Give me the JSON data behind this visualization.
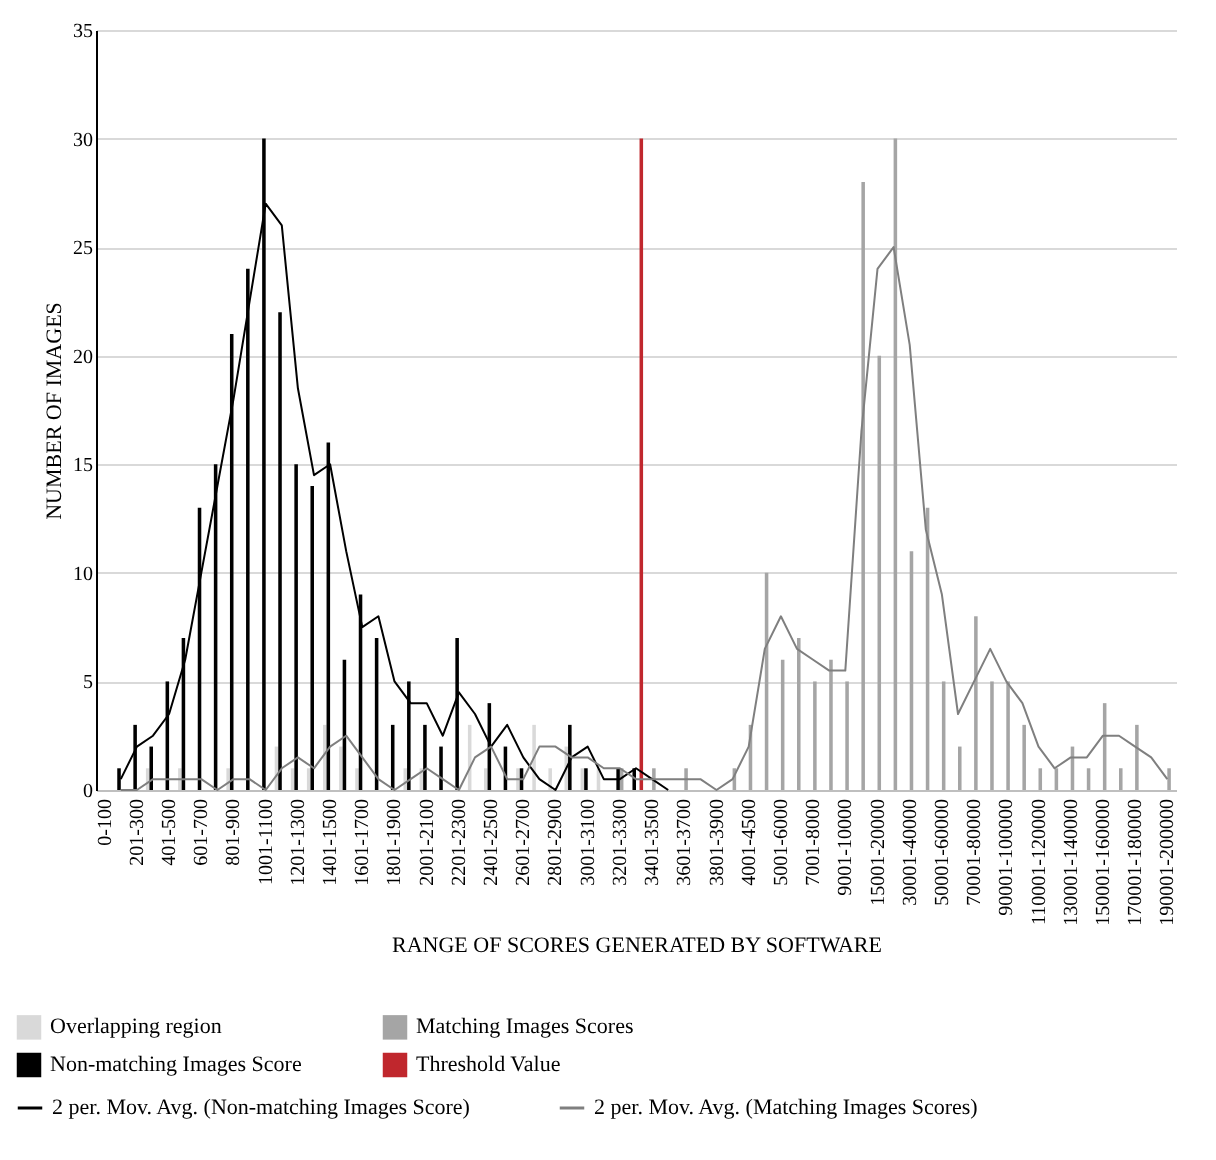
{
  "chart_data": {
    "type": "bar",
    "xlabel": "RANGE OF SCORES GENERATED BY SOFTWARE",
    "ylabel": "NUMBER OF IMAGES",
    "categories": [
      "0-100",
      null,
      "201-300",
      null,
      "401-500",
      null,
      "601-700",
      null,
      "801-900",
      null,
      "1001-1100",
      null,
      "1201-1300",
      null,
      "1401-1500",
      null,
      "1601-1700",
      null,
      "1801-1900",
      null,
      "2001-2100",
      null,
      "2201-2300",
      null,
      "2401-2500",
      null,
      "2601-2700",
      null,
      "2801-2900",
      null,
      "3001-3100",
      null,
      "3201-3300",
      null,
      "3401-3500",
      null,
      "3601-3700",
      null,
      "3801-3900",
      null,
      "4001-4500",
      null,
      "5001-6000",
      null,
      "7001-8000",
      null,
      "9001-10000",
      null,
      "15001-20000",
      null,
      "30001-40000",
      null,
      "50001-60000",
      null,
      "70001-80000",
      null,
      "90001-100000",
      null,
      "110001-120000",
      null,
      "130001-140000",
      null,
      "150001-160000",
      null,
      "170001-180000",
      null,
      "190001-200000"
    ],
    "ylim": [
      0,
      35
    ],
    "yticks": [
      0,
      5,
      10,
      15,
      20,
      25,
      30,
      35
    ],
    "grid": "y",
    "legend": "bottom",
    "series": [
      {
        "name": "Overlapping region",
        "color": "#d9d9d9",
        "values": [
          null,
          null,
          null,
          1,
          null,
          1,
          null,
          null,
          1,
          null,
          null,
          2,
          1,
          1,
          3,
          2,
          1,
          null,
          null,
          1,
          1,
          null,
          null,
          3,
          1,
          null,
          1,
          3,
          1,
          2,
          1,
          1,
          null,
          null,
          null,
          null,
          null,
          null,
          null,
          null,
          null,
          null,
          null,
          null,
          null,
          null,
          null,
          null,
          null,
          null,
          null,
          null,
          null,
          null,
          null,
          null,
          null,
          null,
          null,
          null,
          null,
          null,
          null,
          null,
          null,
          null,
          null
        ]
      },
      {
        "name": "Non-matching Images Score",
        "color": "#000000",
        "values": [
          0,
          1,
          3,
          2,
          5,
          7,
          13,
          15,
          21,
          24,
          30,
          22,
          15,
          14,
          16,
          6,
          9,
          7,
          3,
          5,
          3,
          2,
          7,
          0,
          4,
          2,
          1,
          0,
          0,
          3,
          1,
          0,
          1,
          1,
          null,
          null,
          null,
          null,
          null,
          null,
          null,
          null,
          null,
          null,
          null,
          null,
          null,
          null,
          null,
          null,
          null,
          null,
          null,
          null,
          null,
          null,
          null,
          null,
          null,
          null,
          null,
          null,
          null,
          null,
          null,
          null,
          null
        ]
      },
      {
        "name": "Matching Images Scores",
        "color": "#a5a5a5",
        "values": [
          null,
          null,
          null,
          null,
          null,
          null,
          null,
          null,
          null,
          null,
          null,
          null,
          null,
          null,
          null,
          null,
          null,
          null,
          null,
          null,
          null,
          null,
          null,
          null,
          null,
          null,
          null,
          null,
          null,
          null,
          null,
          null,
          1,
          null,
          1,
          null,
          1,
          null,
          null,
          1,
          3,
          10,
          6,
          7,
          5,
          6,
          5,
          28,
          20,
          30,
          11,
          13,
          5,
          2,
          8,
          5,
          5,
          3,
          1,
          1,
          2,
          1,
          4,
          1,
          3,
          0,
          1
        ]
      },
      {
        "name": "Threshold Value",
        "color": "#c0272d",
        "values": [
          null,
          null,
          null,
          null,
          null,
          null,
          null,
          null,
          null,
          null,
          null,
          null,
          null,
          null,
          null,
          null,
          null,
          null,
          null,
          null,
          null,
          null,
          null,
          null,
          null,
          null,
          null,
          null,
          null,
          null,
          null,
          null,
          null,
          30,
          null,
          null,
          null,
          null,
          null,
          null,
          null,
          null,
          null,
          null,
          null,
          null,
          null,
          null,
          null,
          null,
          null,
          null,
          null,
          null,
          null,
          null,
          null,
          null,
          null,
          null,
          null,
          null,
          null,
          null,
          null,
          null,
          null
        ]
      },
      {
        "name": "2 per. Mov. Avg. (Non-matching Images Score)",
        "type": "line",
        "color": "#000000",
        "values": [
          null,
          0.5,
          2,
          2.5,
          3.5,
          6,
          10,
          14,
          18,
          22.5,
          27,
          26,
          18.5,
          14.5,
          15,
          11,
          7.5,
          8,
          5,
          4,
          4,
          2.5,
          4.5,
          3.5,
          2,
          3,
          1.5,
          0.5,
          0,
          1.5,
          2,
          0.5,
          0.5,
          1,
          0.5,
          0,
          null,
          null,
          null,
          null,
          null,
          null,
          null,
          null,
          null,
          null,
          null,
          null,
          null,
          null,
          null,
          null,
          null,
          null,
          null,
          null,
          null,
          null,
          null,
          null,
          null,
          null,
          null,
          null,
          null,
          null,
          null
        ]
      },
      {
        "name": "2 per. Mov. Avg. (Matching Images Scores)",
        "type": "line",
        "color": "#7f7f7f",
        "values": [
          null,
          0,
          0,
          0.5,
          0.5,
          0.5,
          0.5,
          0,
          0.5,
          0.5,
          0,
          1,
          1.5,
          1,
          2,
          2.5,
          1.5,
          0.5,
          0,
          0.5,
          1,
          0.5,
          0,
          1.5,
          2,
          0.5,
          0.5,
          2,
          2,
          1.5,
          1.5,
          1,
          1,
          0.5,
          0.5,
          0.5,
          0.5,
          0.5,
          0,
          0.5,
          2,
          6.5,
          8,
          6.5,
          6,
          5.5,
          5.5,
          16.5,
          24,
          25,
          20.5,
          12,
          9,
          3.5,
          5,
          6.5,
          5,
          4,
          2,
          1,
          1.5,
          1.5,
          2.5,
          2.5,
          2,
          1.5,
          0.5
        ]
      }
    ]
  }
}
